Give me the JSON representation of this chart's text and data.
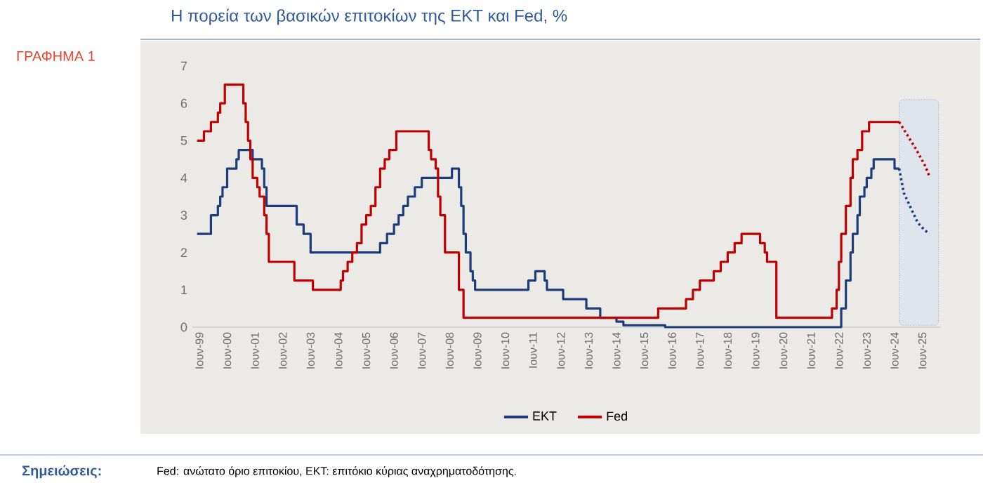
{
  "chart_data": {
    "type": "step",
    "title": "Η πορεία των βασικών επιτοκίων της ΕΚΤ και Fed, %",
    "annotations": [
      "ΓΡΑΦΗΜΑ 1",
      "Σημειώσεις:",
      "Fed: ανώτατο όριο επιτοκίου, ΕΚΤ: επιτόκιο κύριας αναχρηματοδότησης."
    ],
    "xlim": [
      "1999-03",
      "2026-02"
    ],
    "ylim": [
      0,
      7
    ],
    "yticks": [
      0,
      1,
      2,
      3,
      4,
      5,
      6,
      7
    ],
    "xticks": [
      {
        "value": "1999-06",
        "label": "Ιουν-99"
      },
      {
        "value": "2000-06",
        "label": "Ιουν-00"
      },
      {
        "value": "2001-06",
        "label": "Ιουν-01"
      },
      {
        "value": "2002-06",
        "label": "Ιουν-02"
      },
      {
        "value": "2003-06",
        "label": "Ιουν-03"
      },
      {
        "value": "2004-06",
        "label": "Ιουν-04"
      },
      {
        "value": "2005-06",
        "label": "Ιουν-05"
      },
      {
        "value": "2006-06",
        "label": "Ιουν-06"
      },
      {
        "value": "2007-06",
        "label": "Ιουν-07"
      },
      {
        "value": "2008-06",
        "label": "Ιουν-08"
      },
      {
        "value": "2009-06",
        "label": "Ιουν-09"
      },
      {
        "value": "2010-06",
        "label": "Ιουν-10"
      },
      {
        "value": "2011-06",
        "label": "Ιουν-11"
      },
      {
        "value": "2012-06",
        "label": "Ιουν-12"
      },
      {
        "value": "2013-06",
        "label": "Ιουν-13"
      },
      {
        "value": "2014-06",
        "label": "Ιουν-14"
      },
      {
        "value": "2015-06",
        "label": "Ιουν-15"
      },
      {
        "value": "2016-06",
        "label": "Ιουν-16"
      },
      {
        "value": "2017-06",
        "label": "Ιουν-17"
      },
      {
        "value": "2018-06",
        "label": "Ιουν-18"
      },
      {
        "value": "2019-06",
        "label": "Ιουν-19"
      },
      {
        "value": "2020-06",
        "label": "Ιουν-20"
      },
      {
        "value": "2021-06",
        "label": "Ιουν-21"
      },
      {
        "value": "2022-06",
        "label": "Ιουν-22"
      },
      {
        "value": "2023-06",
        "label": "Ιουν-23"
      },
      {
        "value": "2024-06",
        "label": "Ιουν-24"
      },
      {
        "value": "2025-06",
        "label": "Ιουν-25"
      }
    ],
    "legend": "bottom",
    "bands": [
      {
        "axis": "x",
        "from": "2024-08",
        "to": "2026-01",
        "color": "#dfe3ec"
      }
    ],
    "series": [
      {
        "name": "ΕΚΤ",
        "color": "#1f3c7a",
        "x": [
          "1999-05",
          "1999-11",
          "2000-02",
          "2000-03",
          "2000-04",
          "2000-06",
          "2000-10",
          "2000-11",
          "2001-05",
          "2001-09",
          "2001-10",
          "2001-11",
          "2002-12",
          "2003-03",
          "2003-06",
          "2005-12",
          "2006-03",
          "2006-06",
          "2006-08",
          "2006-10",
          "2006-12",
          "2007-03",
          "2007-06",
          "2008-07",
          "2008-10",
          "2008-11",
          "2008-12",
          "2009-01",
          "2009-03",
          "2009-04",
          "2009-05",
          "2011-04",
          "2011-07",
          "2011-11",
          "2011-12",
          "2012-07",
          "2013-05",
          "2013-11",
          "2014-06",
          "2014-09",
          "2016-03",
          "2022-07",
          "2022-09",
          "2022-11",
          "2022-12",
          "2023-02",
          "2023-03",
          "2023-05",
          "2023-06",
          "2023-08",
          "2023-09",
          "2024-06",
          "2024-08"
        ],
        "values": [
          2.5,
          3.0,
          3.25,
          3.5,
          3.75,
          4.25,
          4.5,
          4.75,
          4.5,
          4.25,
          3.75,
          3.25,
          2.75,
          2.5,
          2.0,
          2.25,
          2.5,
          2.75,
          3.0,
          3.25,
          3.5,
          3.75,
          4.0,
          4.25,
          3.75,
          3.25,
          2.5,
          2.0,
          1.5,
          1.25,
          1.0,
          1.25,
          1.5,
          1.25,
          1.0,
          0.75,
          0.5,
          0.25,
          0.15,
          0.05,
          0.0,
          0.5,
          1.25,
          2.0,
          2.5,
          3.0,
          3.5,
          3.75,
          4.0,
          4.25,
          4.5,
          4.25,
          4.25
        ]
      },
      {
        "name": "Fed",
        "color": "#c00000",
        "x": [
          "1999-05",
          "1999-08",
          "1999-11",
          "2000-02",
          "2000-03",
          "2000-05",
          "2001-01",
          "2001-02",
          "2001-03",
          "2001-04",
          "2001-05",
          "2001-07",
          "2001-08",
          "2001-10",
          "2001-11",
          "2001-12",
          "2002-11",
          "2003-07",
          "2004-07",
          "2004-08",
          "2004-10",
          "2004-12",
          "2005-02",
          "2005-04",
          "2005-06",
          "2005-08",
          "2005-10",
          "2005-12",
          "2006-02",
          "2006-04",
          "2006-07",
          "2007-09",
          "2007-10",
          "2007-12",
          "2008-01",
          "2008-02",
          "2008-04",
          "2008-10",
          "2008-12",
          "2015-12",
          "2016-12",
          "2017-03",
          "2017-06",
          "2017-12",
          "2018-03",
          "2018-06",
          "2018-09",
          "2018-12",
          "2019-08",
          "2019-10",
          "2019-11",
          "2020-03",
          "2022-03",
          "2022-05",
          "2022-06",
          "2022-07",
          "2022-09",
          "2022-11",
          "2022-12",
          "2023-02",
          "2023-04",
          "2023-07",
          "2024-08"
        ],
        "values": [
          5.0,
          5.25,
          5.5,
          5.75,
          6.0,
          6.5,
          6.0,
          5.5,
          5.0,
          4.5,
          4.0,
          3.75,
          3.5,
          3.0,
          2.5,
          1.75,
          1.25,
          1.0,
          1.25,
          1.5,
          1.75,
          2.0,
          2.25,
          2.75,
          3.0,
          3.25,
          3.75,
          4.25,
          4.5,
          4.75,
          5.25,
          4.75,
          4.5,
          4.25,
          3.5,
          3.0,
          2.0,
          1.0,
          0.25,
          0.5,
          0.75,
          1.0,
          1.25,
          1.5,
          1.75,
          2.0,
          2.25,
          2.5,
          2.25,
          2.0,
          1.75,
          0.25,
          0.5,
          1.0,
          1.75,
          2.5,
          3.25,
          4.0,
          4.5,
          4.75,
          5.25,
          5.5,
          5.5
        ]
      },
      {
        "type": "line",
        "line_style": "dotted",
        "color": "#1f3c7a",
        "x": [
          "2024-08",
          "2024-10",
          "2025-01",
          "2025-04",
          "2025-07",
          "2025-09"
        ],
        "values": [
          4.25,
          3.6,
          3.2,
          2.8,
          2.6,
          2.5
        ]
      },
      {
        "type": "line",
        "line_style": "dotted",
        "color": "#c00000",
        "x": [
          "2024-08",
          "2024-11",
          "2025-03",
          "2025-07",
          "2025-09"
        ],
        "values": [
          5.5,
          5.2,
          4.8,
          4.35,
          4.05
        ]
      }
    ]
  }
}
